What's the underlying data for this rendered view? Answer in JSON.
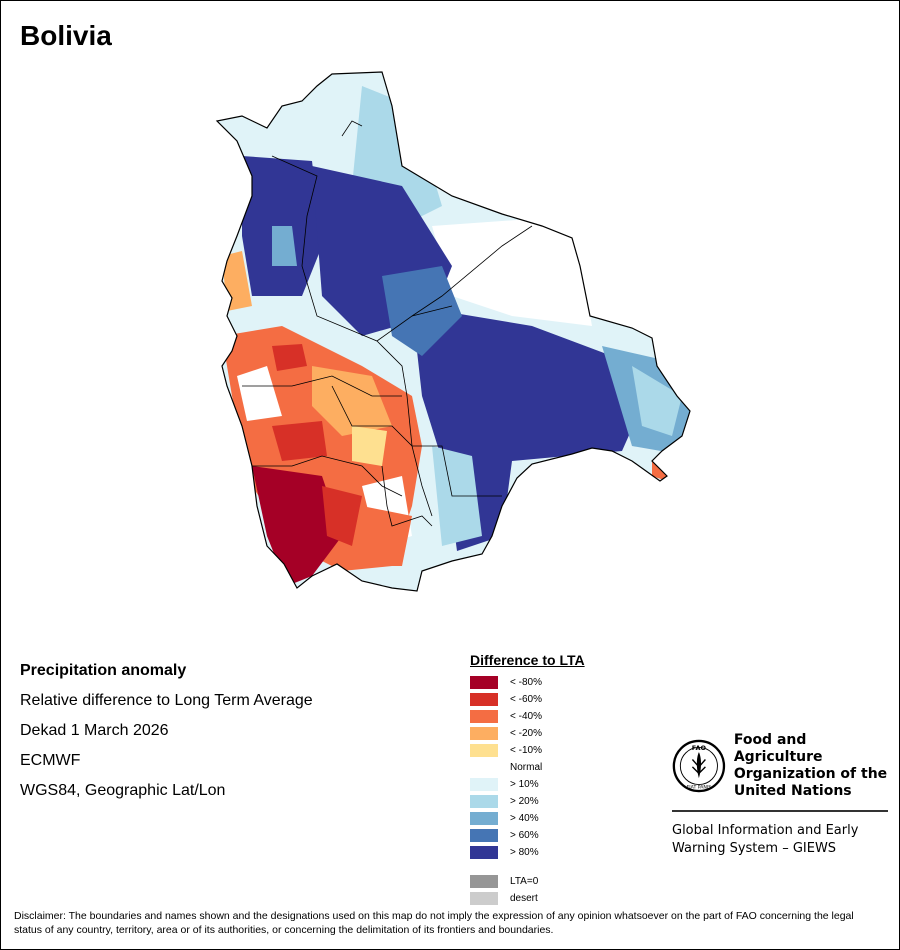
{
  "title": "Bolivia",
  "info": {
    "heading": "Precipitation anomaly",
    "line1": "Relative difference to Long Term Average",
    "line2": "Dekad 1 March 2026",
    "line3": "ECMWF",
    "line4": "WGS84, Geographic Lat/Lon"
  },
  "legend": {
    "title": "Difference to LTA",
    "dry": [
      {
        "label": "< -80%",
        "color": "#a50026"
      },
      {
        "label": "< -60%",
        "color": "#d73027"
      },
      {
        "label": "< -40%",
        "color": "#f46d43"
      },
      {
        "label": "< -20%",
        "color": "#fdae61"
      },
      {
        "label": "< -10%",
        "color": "#fee090"
      }
    ],
    "normal": "Normal",
    "wet": [
      {
        "label": "> 10%",
        "color": "#e0f3f8"
      },
      {
        "label": "> 20%",
        "color": "#abd9e9"
      },
      {
        "label": "> 40%",
        "color": "#74add1"
      },
      {
        "label": "> 60%",
        "color": "#4575b4"
      },
      {
        "label": "> 80%",
        "color": "#313695"
      }
    ],
    "other": [
      {
        "label": "LTA=0",
        "color": "#969696"
      },
      {
        "label": "desert",
        "color": "#cccccc"
      }
    ]
  },
  "logo": {
    "name_line1": "Food and Agriculture",
    "name_line2": "Organization of the",
    "name_line3": "United Nations",
    "system_line1": "Global Information and Early",
    "system_line2": "Warning System – GIEWS",
    "emblem_letters": "FAO",
    "emblem_motto": "FIAT PANIS"
  },
  "disclaimer": "Disclaimer: The boundaries and names shown and the designations used on this map do not imply the expression of any opinion whatsoever on the part of FAO concerning the legal status of any country, territory, area or of its authorities, or concerning the delimitation of its frontiers and boundaries."
}
